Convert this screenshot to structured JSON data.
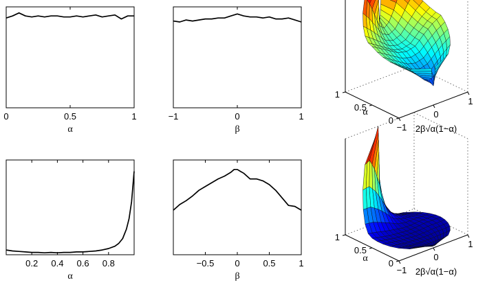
{
  "chart_data": [
    {
      "type": "line",
      "panel": "top-left",
      "xlabel": "α",
      "ylabel": "",
      "title": "",
      "xlim": [
        0,
        1
      ],
      "ylim": [
        0,
        1
      ],
      "xticks": [
        "0",
        "0.5",
        "1"
      ],
      "xtick_values": [
        0,
        0.5,
        1
      ],
      "x": [
        0,
        0.05,
        0.1,
        0.15,
        0.2,
        0.25,
        0.3,
        0.35,
        0.4,
        0.45,
        0.5,
        0.55,
        0.6,
        0.65,
        0.7,
        0.75,
        0.8,
        0.85,
        0.9,
        0.95,
        1
      ],
      "y": [
        0.89,
        0.91,
        0.94,
        0.91,
        0.9,
        0.91,
        0.9,
        0.91,
        0.91,
        0.9,
        0.9,
        0.91,
        0.9,
        0.91,
        0.92,
        0.9,
        0.91,
        0.92,
        0.88,
        0.91,
        0.91
      ]
    },
    {
      "type": "line",
      "panel": "top-middle",
      "xlabel": "β",
      "ylabel": "",
      "title": "",
      "xlim": [
        -1,
        1
      ],
      "ylim": [
        0,
        1
      ],
      "xticks": [
        "−1",
        "0",
        "1"
      ],
      "xtick_values": [
        -1,
        0,
        1
      ],
      "x": [
        -1,
        -0.9,
        -0.8,
        -0.7,
        -0.6,
        -0.5,
        -0.4,
        -0.3,
        -0.2,
        -0.1,
        0,
        0.1,
        0.2,
        0.3,
        0.4,
        0.5,
        0.6,
        0.7,
        0.8,
        0.9,
        1
      ],
      "y": [
        0.86,
        0.85,
        0.87,
        0.86,
        0.87,
        0.88,
        0.88,
        0.89,
        0.89,
        0.91,
        0.93,
        0.91,
        0.9,
        0.9,
        0.89,
        0.9,
        0.88,
        0.88,
        0.89,
        0.87,
        0.85
      ]
    },
    {
      "type": "surface",
      "panel": "top-right",
      "xlabel": "2β√α(1−α)",
      "ylabel": "α",
      "xticks": [
        "−1",
        "0",
        "1"
      ],
      "yticks": [
        "0",
        "0.5",
        "1"
      ],
      "xlim": [
        -1,
        1
      ],
      "ylim": [
        0,
        1
      ],
      "zlim": [
        0,
        1
      ],
      "colormap": "jet",
      "description_values": {
        "z_at_alpha_1": [
          1.0,
          0.9,
          0.75,
          0.6,
          0.55,
          0.6,
          0.7,
          0.85,
          0.95
        ],
        "z_at_alpha_0_5_edge": [
          0.55,
          0.5,
          0.45,
          0.4,
          0.38,
          0.4,
          0.48,
          0.55,
          0.6
        ],
        "z_at_alpha_0": [
          0.35,
          0.3,
          0.25,
          0.2,
          0.18,
          0.2,
          0.25,
          0.3,
          0.35
        ]
      }
    },
    {
      "type": "line",
      "panel": "bottom-left",
      "xlabel": "α",
      "ylabel": "",
      "title": "",
      "xlim": [
        0,
        1
      ],
      "ylim": [
        0,
        1
      ],
      "xticks": [
        "0.2",
        "0.4",
        "0.6",
        "0.8"
      ],
      "xtick_values": [
        0.2,
        0.4,
        0.6,
        0.8
      ],
      "x": [
        0,
        0.05,
        0.1,
        0.15,
        0.2,
        0.25,
        0.3,
        0.35,
        0.4,
        0.45,
        0.5,
        0.55,
        0.6,
        0.65,
        0.7,
        0.75,
        0.8,
        0.85,
        0.88,
        0.91,
        0.94,
        0.96,
        0.98,
        1
      ],
      "y": [
        0.05,
        0.04,
        0.035,
        0.03,
        0.025,
        0.025,
        0.02,
        0.025,
        0.02,
        0.025,
        0.025,
        0.03,
        0.03,
        0.035,
        0.04,
        0.05,
        0.065,
        0.09,
        0.12,
        0.17,
        0.27,
        0.38,
        0.56,
        0.88
      ]
    },
    {
      "type": "line",
      "panel": "bottom-middle",
      "xlabel": "β",
      "ylabel": "",
      "title": "",
      "xlim": [
        -1,
        1
      ],
      "ylim": [
        0,
        1
      ],
      "xticks": [
        "−0.5",
        "0",
        "0.5",
        "1"
      ],
      "xtick_values": [
        -0.5,
        0,
        0.5,
        1
      ],
      "x": [
        -1,
        -0.9,
        -0.8,
        -0.7,
        -0.6,
        -0.5,
        -0.4,
        -0.3,
        -0.2,
        -0.1,
        -0.05,
        0,
        0.05,
        0.1,
        0.2,
        0.3,
        0.4,
        0.5,
        0.6,
        0.7,
        0.8,
        0.9,
        1
      ],
      "y": [
        0.47,
        0.53,
        0.57,
        0.62,
        0.68,
        0.72,
        0.76,
        0.8,
        0.83,
        0.87,
        0.9,
        0.9,
        0.88,
        0.86,
        0.8,
        0.8,
        0.78,
        0.74,
        0.68,
        0.6,
        0.52,
        0.51,
        0.47
      ]
    },
    {
      "type": "surface",
      "panel": "bottom-right",
      "xlabel": "2β√α(1−α)",
      "ylabel": "α",
      "xticks": [
        "−1",
        "0",
        "1"
      ],
      "yticks": [
        "0",
        "0.5",
        "1"
      ],
      "xlim": [
        -1,
        1
      ],
      "ylim": [
        0,
        1
      ],
      "zlim": [
        0,
        1
      ],
      "colormap": "jet",
      "description_values": {
        "z_at_alpha_1": [
          0.95,
          1.0,
          0.85,
          0.6,
          0.3,
          0.15,
          0.08,
          0.05,
          0.04
        ],
        "z_at_alpha_0_5_edge": [
          0.1,
          0.08,
          0.06,
          0.05,
          0.04,
          0.04,
          0.05,
          0.05,
          0.05
        ],
        "z_at_alpha_0": [
          0.03,
          0.03,
          0.02,
          0.02,
          0.02,
          0.02,
          0.02,
          0.02,
          0.03
        ]
      }
    }
  ]
}
